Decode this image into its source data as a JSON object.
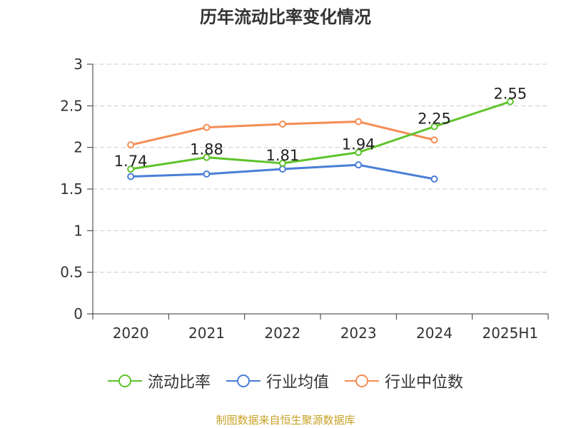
{
  "chart_data": {
    "type": "line",
    "title": "历年流动比率变化情况",
    "categories": [
      "2020",
      "2021",
      "2022",
      "2023",
      "2024",
      "2025H1"
    ],
    "ylim": [
      0,
      3
    ],
    "yticks": [
      "0",
      "0.5",
      "1",
      "1.5",
      "2",
      "2.5",
      "3"
    ],
    "grid": true,
    "legend_position": "bottom",
    "series": [
      {
        "name": "流动比率",
        "color": "#5ec42b",
        "values": [
          1.74,
          1.88,
          1.81,
          1.94,
          2.25,
          2.55
        ],
        "labels": [
          "1.74",
          "1.88",
          "1.81",
          "1.94",
          "2.25",
          "2.55"
        ]
      },
      {
        "name": "行业均值",
        "color": "#4a7fd6",
        "values": [
          1.65,
          1.68,
          1.74,
          1.79,
          1.62,
          null
        ]
      },
      {
        "name": "行业中位数",
        "color": "#f58d55",
        "values": [
          2.03,
          2.24,
          2.28,
          2.31,
          2.09,
          null
        ]
      }
    ]
  },
  "footer": "制图数据来自恒生聚源数据库"
}
